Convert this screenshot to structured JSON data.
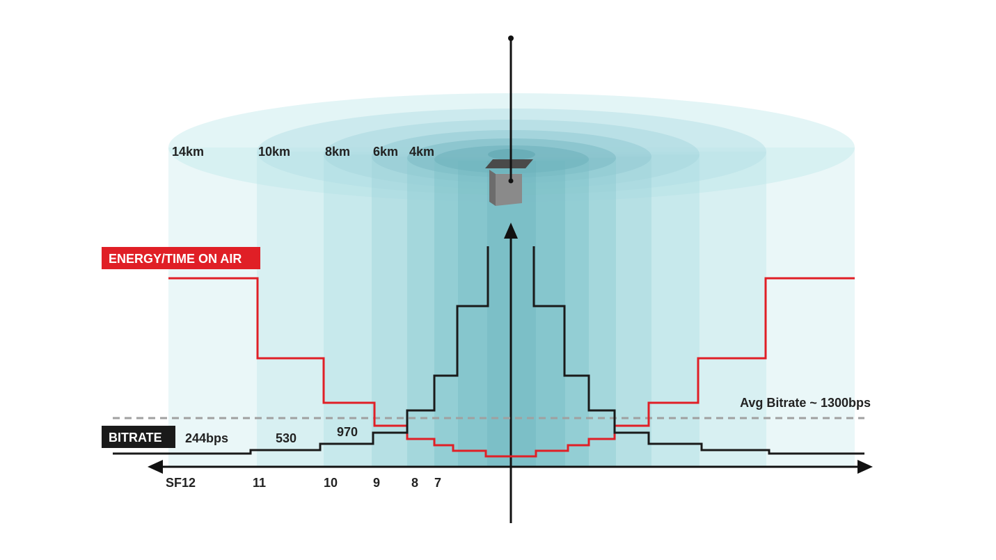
{
  "colors": {
    "energy_line": "#e01f26",
    "bitrate_line": "#1a1a1a",
    "avg_line": "#a0a0a0",
    "zone_fill": "#bfe6ea",
    "energy_tag_bg": "#e01f26",
    "bitrate_tag_bg": "#1a1a1a"
  },
  "zones": [
    {
      "name": "sf12",
      "distance": "14km"
    },
    {
      "name": "sf11",
      "distance": "10km"
    },
    {
      "name": "sf10",
      "distance": "8km"
    },
    {
      "name": "sf9",
      "distance": "6km"
    },
    {
      "name": "sf8",
      "distance": "4km"
    },
    {
      "name": "sf7",
      "distance": ""
    }
  ],
  "labels": {
    "energy_tag": "ENERGY/TIME ON AIR",
    "bitrate_tag": "BITRATE",
    "avg_bitrate": "Avg Bitrate ~ 1300bps",
    "bitrate_values": [
      "244bps",
      "530",
      "970"
    ],
    "spreading_factors": [
      "SF12",
      "11",
      "10",
      "9",
      "8",
      "7"
    ]
  },
  "icons": {
    "gateway": "gateway-antenna-icon",
    "axis": "double-arrow-axis-icon"
  }
}
